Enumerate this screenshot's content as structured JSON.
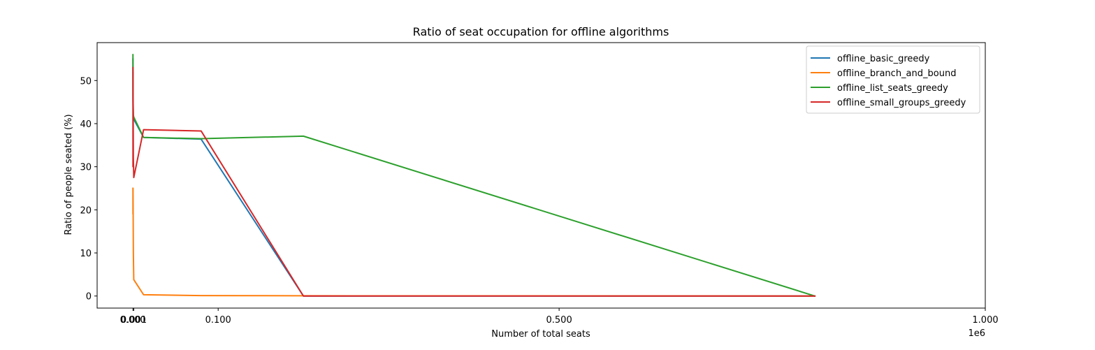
{
  "chart_data": {
    "type": "line",
    "title": "Ratio of seat occupation for offline algorithms",
    "xlabel": "Number of total seats",
    "ylabel": "Ratio of people seated (%)",
    "x_offset_label": "1e6",
    "xlim": [
      -42000,
      1000000
    ],
    "ylim": [
      -2.8,
      58.8
    ],
    "xticks": [
      {
        "value": 0,
        "label": "0.000"
      },
      {
        "value": 1000,
        "label": "0.001"
      },
      {
        "value": 100000,
        "label": "0.100"
      },
      {
        "value": 500000,
        "label": "0.500"
      },
      {
        "value": 1000000,
        "label": "1.000"
      }
    ],
    "yticks": [
      {
        "value": 0,
        "label": "0"
      },
      {
        "value": 10,
        "label": "10"
      },
      {
        "value": 20,
        "label": "20"
      },
      {
        "value": 30,
        "label": "30"
      },
      {
        "value": 40,
        "label": "40"
      },
      {
        "value": 50,
        "label": "50"
      }
    ],
    "legend": {
      "position": "top-right"
    },
    "grid": false,
    "series": [
      {
        "name": "offline_basic_greedy",
        "color": "#1f77b4",
        "x": [
          10,
          50,
          100,
          500,
          1000,
          12500,
          80000,
          200000,
          800000
        ],
        "y": [
          55,
          53,
          45,
          41,
          41,
          36.8,
          36.4,
          0,
          0
        ]
      },
      {
        "name": "offline_branch_and_bound",
        "color": "#ff7f0e",
        "x": [
          10,
          50,
          100,
          500,
          1000,
          12500,
          80000,
          200000,
          800000
        ],
        "y": [
          25,
          19,
          25,
          10,
          3.8,
          0.3,
          0.1,
          0.05,
          0
        ]
      },
      {
        "name": "offline_list_seats_greedy",
        "color": "#2ca02c",
        "x": [
          10,
          50,
          100,
          500,
          1000,
          12500,
          80000,
          200000,
          800000
        ],
        "y": [
          56,
          54,
          46,
          42,
          41.5,
          36.8,
          36.5,
          37.1,
          0
        ]
      },
      {
        "name": "offline_small_groups_greedy",
        "color": "#d62728",
        "x": [
          10,
          50,
          100,
          500,
          1000,
          12500,
          80000,
          200000,
          800000
        ],
        "y": [
          53,
          30,
          52,
          32,
          27.5,
          38.6,
          38.3,
          0,
          0
        ]
      }
    ]
  }
}
